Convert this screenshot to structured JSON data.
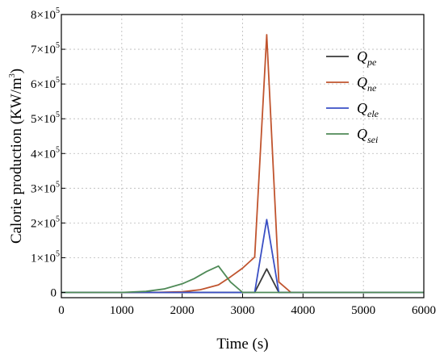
{
  "chart_data": {
    "type": "line",
    "xlabel": "Time (s)",
    "ylabel_main": "Calorie production (KW/m",
    "ylabel_sup": "3",
    "ylabel_close": ")",
    "xlim": [
      0,
      6000
    ],
    "ylim": [
      -15000,
      800000
    ],
    "grid": true,
    "legend_position": "top-right",
    "x_ticks": [
      0,
      1000,
      2000,
      3000,
      4000,
      5000,
      6000
    ],
    "y_ticks": [
      {
        "value": 0,
        "mantissa": "0",
        "exp": ""
      },
      {
        "value": 100000,
        "mantissa": "1×10",
        "exp": "5"
      },
      {
        "value": 200000,
        "mantissa": "2×10",
        "exp": "5"
      },
      {
        "value": 300000,
        "mantissa": "3×10",
        "exp": "5"
      },
      {
        "value": 400000,
        "mantissa": "4×10",
        "exp": "5"
      },
      {
        "value": 500000,
        "mantissa": "5×10",
        "exp": "5"
      },
      {
        "value": 600000,
        "mantissa": "6×10",
        "exp": "5"
      },
      {
        "value": 700000,
        "mantissa": "7×10",
        "exp": "5"
      },
      {
        "value": 800000,
        "mantissa": "8×10",
        "exp": "5"
      }
    ],
    "series": [
      {
        "name": "Q",
        "sub": "pe",
        "color": "#3a3a3a",
        "x": [
          0,
          3200,
          3400,
          3600,
          6000
        ],
        "y": [
          0,
          0,
          68000,
          0,
          0
        ]
      },
      {
        "name": "Q",
        "sub": "ne",
        "color": "#c0542e",
        "x": [
          0,
          1500,
          2000,
          2300,
          2600,
          2800,
          3000,
          3200,
          3400,
          3600,
          3800,
          6000
        ],
        "y": [
          0,
          0,
          2000,
          8000,
          22000,
          45000,
          70000,
          102000,
          742000,
          30000,
          0,
          0
        ]
      },
      {
        "name": "Q",
        "sub": "ele",
        "color": "#3a4fc4",
        "x": [
          0,
          3200,
          3400,
          3600,
          6000
        ],
        "y": [
          0,
          0,
          210000,
          0,
          0
        ]
      },
      {
        "name": "Q",
        "sub": "sei",
        "color": "#4f8a57",
        "x": [
          0,
          1000,
          1400,
          1700,
          2000,
          2200,
          2400,
          2600,
          2800,
          3000,
          6000
        ],
        "y": [
          0,
          0,
          3000,
          10000,
          25000,
          40000,
          60000,
          76000,
          30000,
          0,
          0
        ]
      }
    ]
  }
}
